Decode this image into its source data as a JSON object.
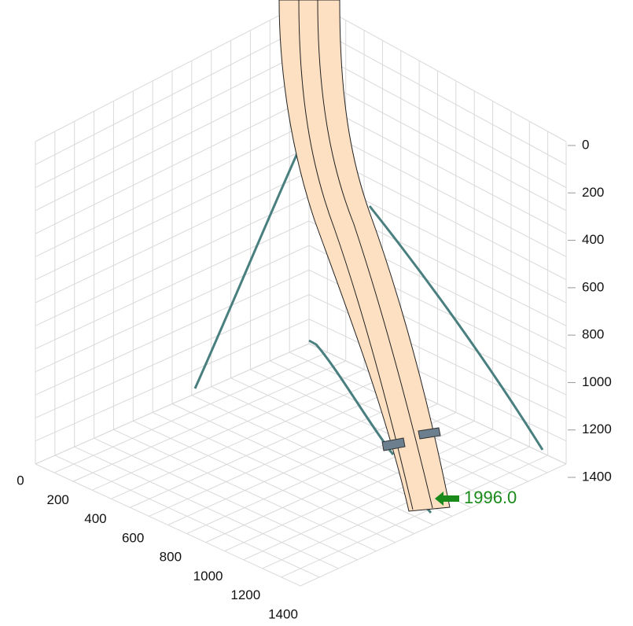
{
  "chart_data": {
    "type": "well3d",
    "yticks": [
      0,
      200,
      400,
      600,
      800,
      1000,
      1200,
      1400
    ],
    "xticks": [
      0,
      200,
      400,
      600,
      800,
      1000,
      1200,
      1400
    ],
    "ylim": [
      0,
      1400
    ],
    "xlim": [
      0,
      1400
    ],
    "annotation": "1996.0",
    "annotation_color": "#1a8a1a",
    "well_color": "#fde0c2",
    "projection_color": "#4a7f80"
  }
}
